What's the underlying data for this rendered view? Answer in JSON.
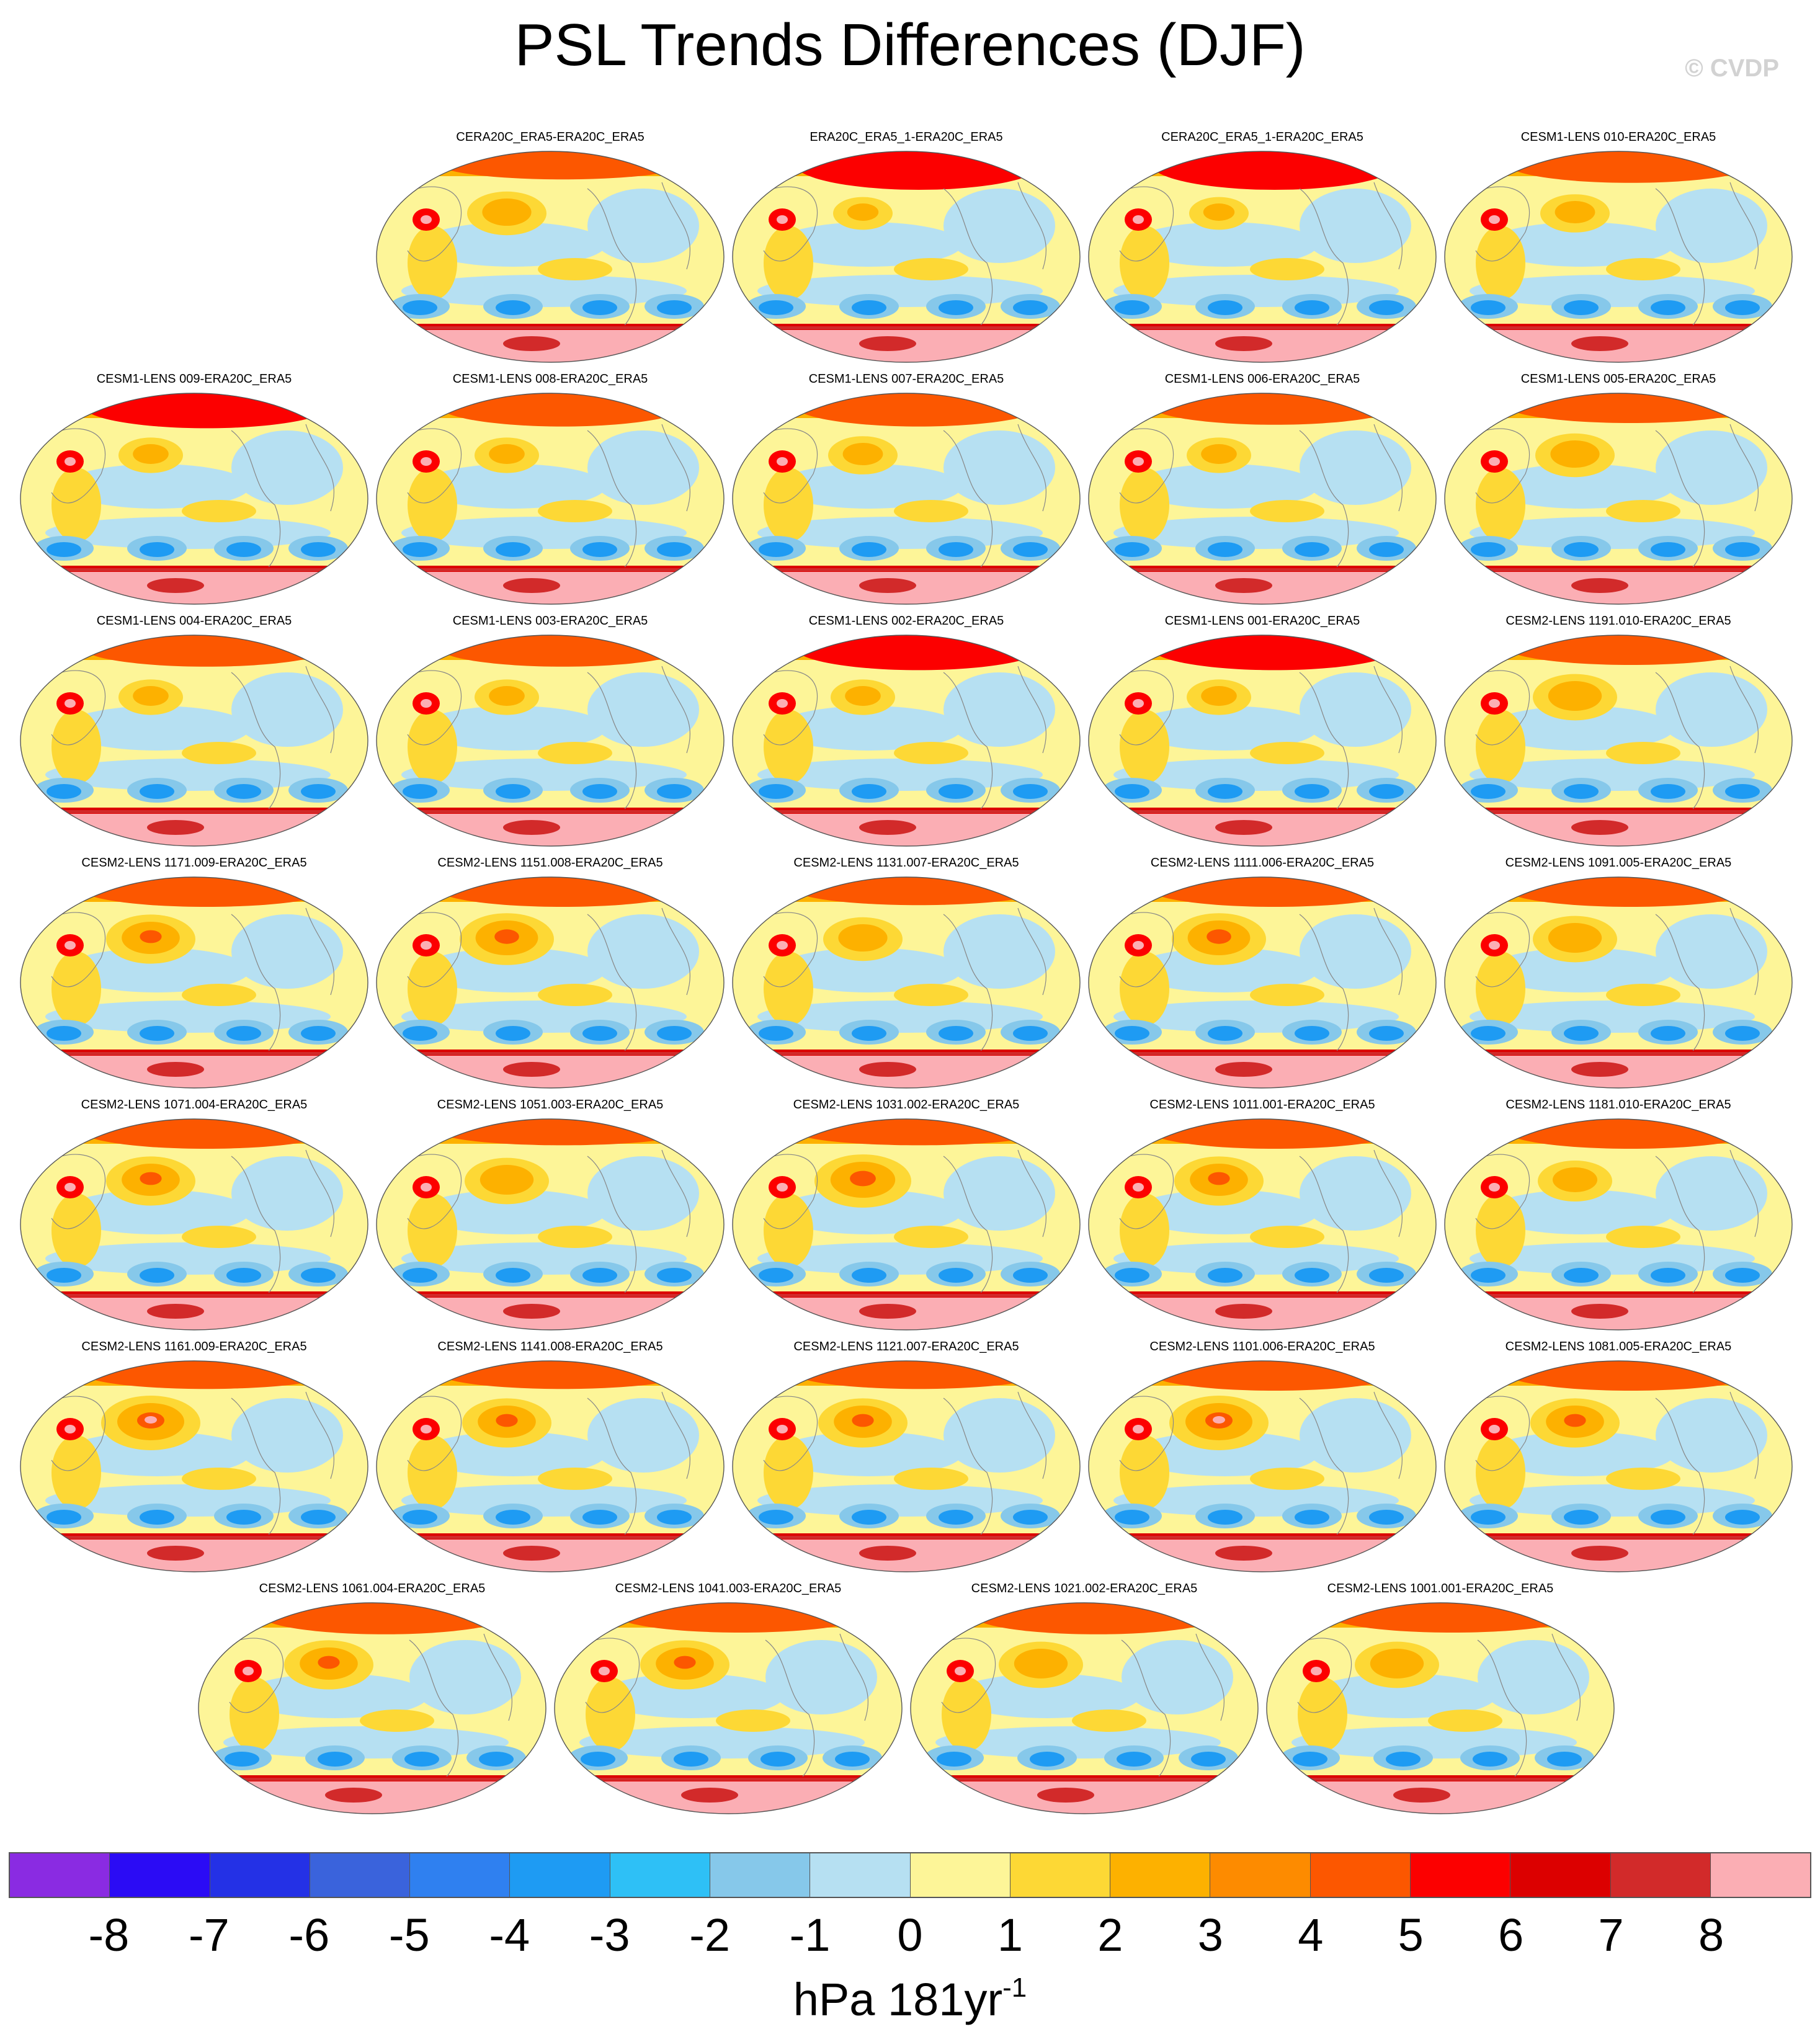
{
  "title": "PSL Trends Differences (DJF)",
  "watermark": "© CVDP",
  "panels": [
    {
      "label": "CERA20C_ERA5-ERA20C_ERA5",
      "nh_ridge": 0.4,
      "pac_high": 0.6
    },
    {
      "label": "ERA20C_ERA5_1-ERA20C_ERA5",
      "nh_ridge": 1.0,
      "pac_high": 0.2
    },
    {
      "label": "CERA20C_ERA5_1-ERA20C_ERA5",
      "nh_ridge": 1.0,
      "pac_high": 0.2
    },
    {
      "label": "CESM1-LENS 010-ERA20C_ERA5",
      "nh_ridge": 0.6,
      "pac_high": 0.4
    },
    {
      "label": "CESM1-LENS 009-ERA20C_ERA5",
      "nh_ridge": 0.8,
      "pac_high": 0.3
    },
    {
      "label": "CESM1-LENS 008-ERA20C_ERA5",
      "nh_ridge": 0.7,
      "pac_high": 0.3
    },
    {
      "label": "CESM1-LENS 007-ERA20C_ERA5",
      "nh_ridge": 0.7,
      "pac_high": 0.4
    },
    {
      "label": "CESM1-LENS 006-ERA20C_ERA5",
      "nh_ridge": 0.6,
      "pac_high": 0.3
    },
    {
      "label": "CESM1-LENS 005-ERA20C_ERA5",
      "nh_ridge": 0.5,
      "pac_high": 0.6
    },
    {
      "label": "CESM1-LENS 004-ERA20C_ERA5",
      "nh_ridge": 0.6,
      "pac_high": 0.3
    },
    {
      "label": "CESM1-LENS 003-ERA20C_ERA5",
      "nh_ridge": 0.6,
      "pac_high": 0.3
    },
    {
      "label": "CESM1-LENS 002-ERA20C_ERA5",
      "nh_ridge": 0.8,
      "pac_high": 0.3
    },
    {
      "label": "CESM1-LENS 001-ERA20C_ERA5",
      "nh_ridge": 0.8,
      "pac_high": 0.3
    },
    {
      "label": "CESM2-LENS 1191.010-ERA20C_ERA5",
      "nh_ridge": 0.5,
      "pac_high": 0.7
    },
    {
      "label": "CESM2-LENS 1171.009-ERA20C_ERA5",
      "nh_ridge": 0.5,
      "pac_high": 0.8
    },
    {
      "label": "CESM2-LENS 1151.008-ERA20C_ERA5",
      "nh_ridge": 0.5,
      "pac_high": 0.9
    },
    {
      "label": "CESM2-LENS 1131.007-ERA20C_ERA5",
      "nh_ridge": 0.4,
      "pac_high": 0.6
    },
    {
      "label": "CESM2-LENS 1111.006-ERA20C_ERA5",
      "nh_ridge": 0.5,
      "pac_high": 0.9
    },
    {
      "label": "CESM2-LENS 1091.005-ERA20C_ERA5",
      "nh_ridge": 0.5,
      "pac_high": 0.7
    },
    {
      "label": "CESM2-LENS 1071.004-ERA20C_ERA5",
      "nh_ridge": 0.5,
      "pac_high": 0.8
    },
    {
      "label": "CESM2-LENS 1051.003-ERA20C_ERA5",
      "nh_ridge": 0.3,
      "pac_high": 0.7
    },
    {
      "label": "CESM2-LENS 1031.002-ERA20C_ERA5",
      "nh_ridge": 0.3,
      "pac_high": 0.95
    },
    {
      "label": "CESM2-LENS 1011.001-ERA20C_ERA5",
      "nh_ridge": 0.5,
      "pac_high": 0.8
    },
    {
      "label": "CESM2-LENS 1181.010-ERA20C_ERA5",
      "nh_ridge": 0.5,
      "pac_high": 0.5
    },
    {
      "label": "CESM2-LENS 1161.009-ERA20C_ERA5",
      "nh_ridge": 0.4,
      "pac_high": 1.0
    },
    {
      "label": "CESM2-LENS 1141.008-ERA20C_ERA5",
      "nh_ridge": 0.4,
      "pac_high": 0.8
    },
    {
      "label": "CESM2-LENS 1121.007-ERA20C_ERA5",
      "nh_ridge": 0.4,
      "pac_high": 0.8
    },
    {
      "label": "CESM2-LENS 1101.006-ERA20C_ERA5",
      "nh_ridge": 0.5,
      "pac_high": 1.0
    },
    {
      "label": "CESM2-LENS 1081.005-ERA20C_ERA5",
      "nh_ridge": 0.5,
      "pac_high": 0.8
    },
    {
      "label": "CESM2-LENS 1061.004-ERA20C_ERA5",
      "nh_ridge": 0.6,
      "pac_high": 0.8
    },
    {
      "label": "CESM2-LENS 1041.003-ERA20C_ERA5",
      "nh_ridge": 0.5,
      "pac_high": 0.8
    },
    {
      "label": "CESM2-LENS 1021.002-ERA20C_ERA5",
      "nh_ridge": 0.6,
      "pac_high": 0.7
    },
    {
      "label": "CESM2-LENS 1001.001-ERA20C_ERA5",
      "nh_ridge": 0.5,
      "pac_high": 0.7
    }
  ],
  "colorbar": {
    "units_main": "hPa 181yr",
    "units_exp": "-1",
    "ticks": [
      "-8",
      "-7",
      "-6",
      "-5",
      "-4",
      "-3",
      "-2",
      "-1",
      "0",
      "1",
      "2",
      "3",
      "4",
      "5",
      "6",
      "7",
      "8"
    ],
    "colors": [
      "#8a2be2",
      "#2b0bf5",
      "#2431e6",
      "#3a63dc",
      "#2f80f0",
      "#1e9bf3",
      "#2ec0f6",
      "#86c8ea",
      "#b6e0f2",
      "#fdf598",
      "#fdd835",
      "#fdb100",
      "#fd8b00",
      "#fc5700",
      "#fc0000",
      "#dc0000",
      "#d22a2a",
      "#fbaeb4"
    ]
  }
}
